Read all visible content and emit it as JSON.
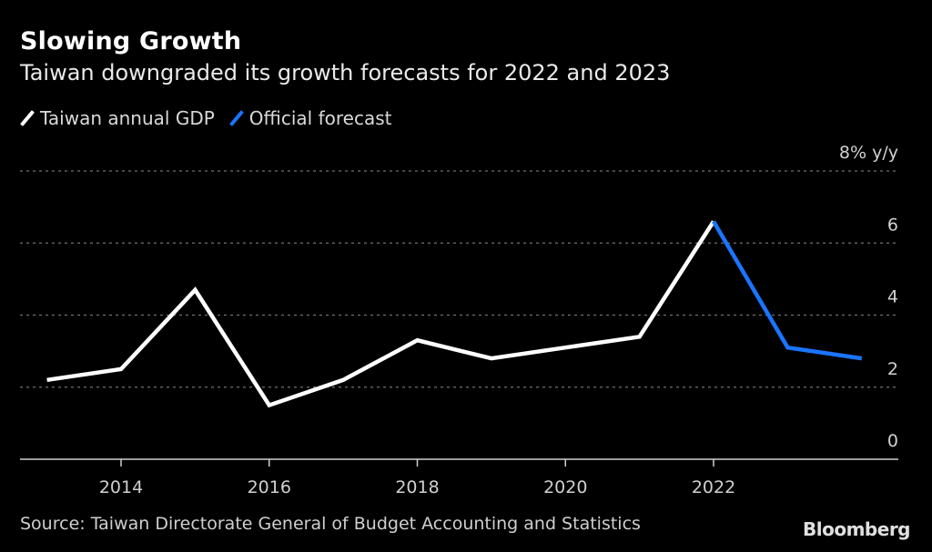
{
  "header": {
    "title": "Slowing Growth",
    "subtitle": "Taiwan downgraded its growth forecasts for 2022 and 2023"
  },
  "footer": {
    "source": "Source: Taiwan Directorate General of Budget Accounting and Statistics",
    "brand": "Bloomberg"
  },
  "chart_data": {
    "type": "line",
    "title": "Slowing Growth",
    "subtitle": "Taiwan downgraded its growth forecasts for 2022 and 2023",
    "xlabel": "",
    "ylabel": "% y/y",
    "y_unit_label": "8% y/y",
    "ylim": [
      0,
      8
    ],
    "xlim": [
      2013,
      2024
    ],
    "y_ticks": [
      0,
      2,
      4,
      6,
      8
    ],
    "y_tick_labels": [
      "0",
      "2",
      "4",
      "6",
      "8% y/y"
    ],
    "x_ticks": [
      2014,
      2016,
      2018,
      2020,
      2022
    ],
    "x_tick_labels": [
      "2014",
      "2016",
      "2018",
      "2020",
      "2022"
    ],
    "grid": true,
    "legend_position": "top-left",
    "series": [
      {
        "name": "Taiwan annual GDP",
        "color": "#ffffff",
        "x": [
          2013,
          2014,
          2015,
          2016,
          2017,
          2018,
          2019,
          2020,
          2021,
          2022
        ],
        "values": [
          2.2,
          2.5,
          4.7,
          1.5,
          2.2,
          3.3,
          2.8,
          3.1,
          3.4,
          6.6
        ]
      },
      {
        "name": "Official forecast",
        "color": "#1a75ff",
        "x": [
          2022,
          2023,
          2024
        ],
        "values": [
          6.6,
          3.1,
          2.8
        ]
      }
    ]
  }
}
